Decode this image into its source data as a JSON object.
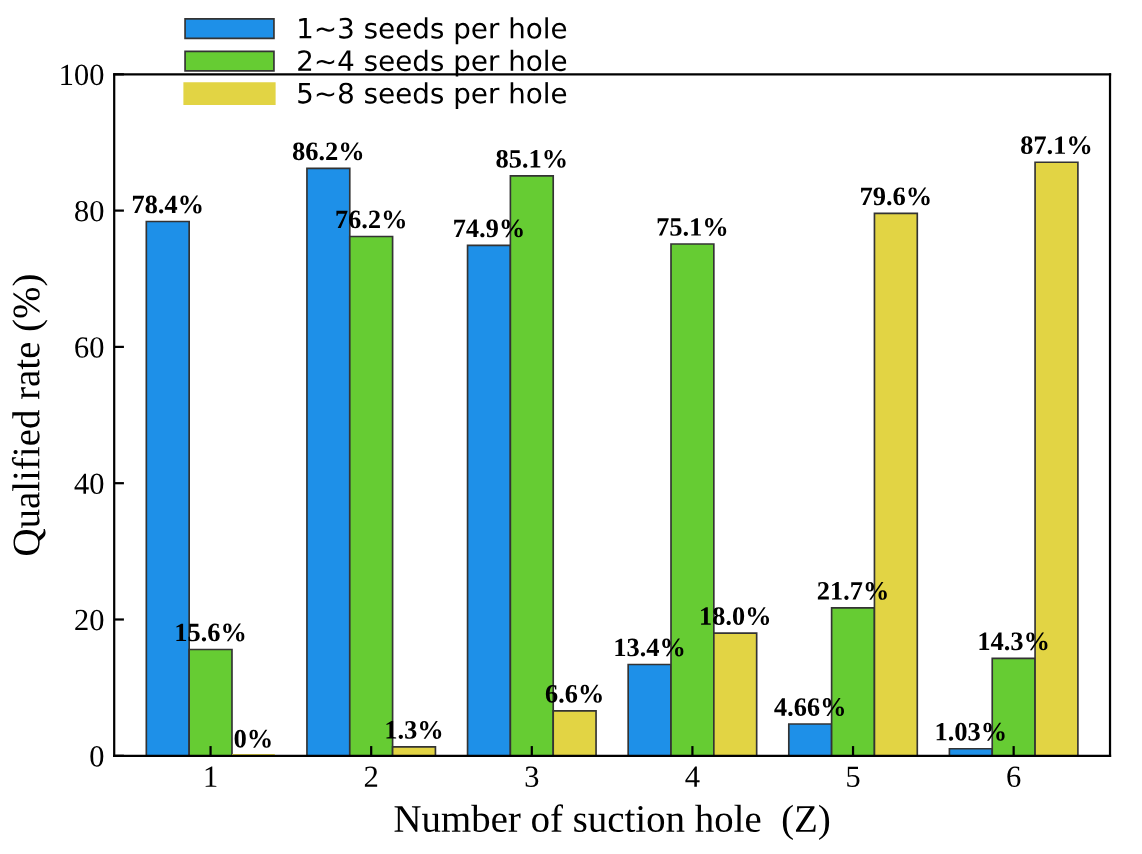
{
  "chart_data": {
    "type": "bar",
    "xlabel": "Number of suction hole  (Z)",
    "ylabel": "Qualified rate (%)",
    "categories": [
      "1",
      "2",
      "3",
      "4",
      "5",
      "6"
    ],
    "series": [
      {
        "name": "1~3 seeds per hole",
        "color": "#1e90e8",
        "values": [
          78.4,
          86.2,
          74.9,
          13.4,
          4.66,
          1.03
        ],
        "value_labels": [
          "78.4%",
          "86.2%",
          "74.9%",
          "13.4%",
          "4.66%",
          "1.03%"
        ]
      },
      {
        "name": "2~4 seeds per hole",
        "color": "#66cc33",
        "values": [
          15.6,
          76.2,
          85.1,
          75.1,
          21.7,
          14.3
        ],
        "value_labels": [
          "15.6%",
          "76.2%",
          "85.1%",
          "75.1%",
          "21.7%",
          "14.3%"
        ]
      },
      {
        "name": "5~8 seeds per hole",
        "color": "#e2d444",
        "values": [
          0,
          1.3,
          6.6,
          18.0,
          79.6,
          87.1
        ],
        "value_labels": [
          "0%",
          "1.3%",
          "6.6%",
          "18.0%",
          "79.6%",
          "87.1%"
        ]
      }
    ],
    "ylim": [
      0,
      100
    ],
    "yticks": [
      0,
      20,
      40,
      60,
      80,
      100
    ],
    "legend": "top left",
    "grid": false
  }
}
